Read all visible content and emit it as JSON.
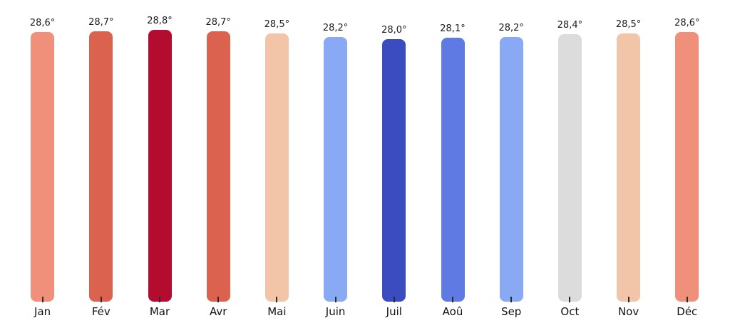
{
  "chart_data": {
    "type": "bar",
    "title": "",
    "xlabel": "",
    "ylabel": "",
    "legend": "none",
    "grid": false,
    "background_color": "#ffffff",
    "text_color": "#1a1a1a",
    "tick_color": "#2b2b2b",
    "categories": [
      "Jan",
      "Fév",
      "Mar",
      "Avr",
      "Mai",
      "Juin",
      "Juil",
      "Aoû",
      "Sep",
      "Oct",
      "Nov",
      "Déc"
    ],
    "values": [
      28.6,
      28.7,
      28.8,
      28.7,
      28.5,
      28.2,
      28.0,
      28.1,
      28.2,
      28.4,
      28.5,
      28.6
    ],
    "value_labels": [
      "28,6°",
      "28,7°",
      "28,8°",
      "28,7°",
      "28,5°",
      "28,2°",
      "28,0°",
      "28,1°",
      "28,2°",
      "28,4°",
      "28,5°",
      "28,6°"
    ],
    "bar_colors": [
      "#F0907A",
      "#DC6250",
      "#B40C2E",
      "#DC6250",
      "#F2C5A8",
      "#89A9F4",
      "#3B4CC0",
      "#5F7BE3",
      "#89A9F4",
      "#DCDCDC",
      "#F2C5A8",
      "#F0907A"
    ],
    "unit": "°C",
    "value_range_shown": [
      28.0,
      28.8
    ]
  }
}
